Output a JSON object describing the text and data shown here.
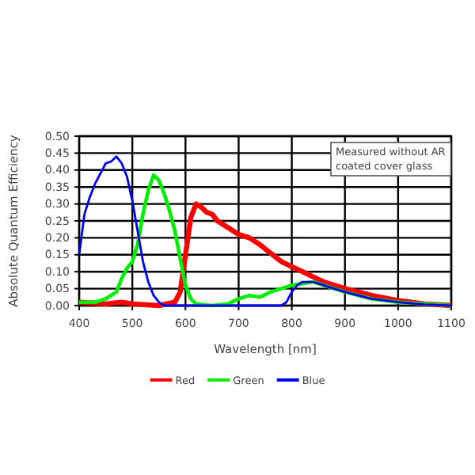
{
  "chart_data": {
    "type": "line",
    "xlabel": "Wavelength [nm]",
    "ylabel": "Absolute Quantum Efficiency",
    "annotations": [
      "Measured without AR coated cover glass"
    ],
    "xlim": [
      400,
      1100
    ],
    "xticks": [
      400,
      500,
      600,
      700,
      800,
      900,
      1000,
      1100
    ],
    "ylim": [
      0,
      0.5
    ],
    "yticks": [
      {
        "value": 0,
        "label": "0.00"
      },
      {
        "value": 0.05,
        "label": "0.05"
      },
      {
        "value": 0.1,
        "label": "0.10"
      },
      {
        "value": 0.15,
        "label": "0.15"
      },
      {
        "value": 0.2,
        "label": "0.20"
      },
      {
        "value": 0.25,
        "label": "0.25"
      },
      {
        "value": 0.3,
        "label": "0.30"
      },
      {
        "value": 0.35,
        "label": "0.35"
      },
      {
        "value": 0.4,
        "label": "0.40"
      },
      {
        "value": 0.45,
        "label": "0.45"
      },
      {
        "value": 0.5,
        "label": "0.50"
      }
    ],
    "grid": true,
    "legend": "bottom",
    "marker": "none",
    "line_style": "solid",
    "series": [
      {
        "name": "Red",
        "color": "#ff0000",
        "x": [
          400,
          450,
          480,
          500,
          550,
          580,
          590,
          600,
          610,
          620,
          630,
          640,
          650,
          660,
          680,
          700,
          720,
          740,
          760,
          780,
          800,
          820,
          840,
          860,
          880,
          900,
          950,
          1000,
          1050,
          1100
        ],
        "values": [
          0.01,
          0.005,
          0.01,
          0.005,
          0,
          0.01,
          0.04,
          0.15,
          0.26,
          0.3,
          0.29,
          0.275,
          0.27,
          0.25,
          0.23,
          0.21,
          0.2,
          0.18,
          0.155,
          0.13,
          0.115,
          0.1,
          0.085,
          0.07,
          0.06,
          0.05,
          0.03,
          0.015,
          0.005,
          0
        ]
      },
      {
        "name": "Green",
        "color": "#00ee00",
        "x": [
          400,
          430,
          450,
          470,
          480,
          490,
          500,
          510,
          520,
          530,
          540,
          550,
          560,
          570,
          580,
          590,
          600,
          610,
          620,
          650,
          680,
          700,
          720,
          740,
          760,
          780,
          800,
          820,
          840,
          860,
          900,
          950,
          1000,
          1100
        ],
        "values": [
          0.01,
          0.01,
          0.02,
          0.04,
          0.08,
          0.11,
          0.13,
          0.18,
          0.27,
          0.34,
          0.385,
          0.37,
          0.33,
          0.28,
          0.22,
          0.14,
          0.06,
          0.02,
          0.005,
          0,
          0.005,
          0.02,
          0.03,
          0.025,
          0.04,
          0.05,
          0.06,
          0.065,
          0.07,
          0.06,
          0.04,
          0.02,
          0.01,
          0
        ]
      },
      {
        "name": "Blue",
        "color": "#0000ee",
        "x": [
          400,
          410,
          420,
          430,
          440,
          450,
          460,
          470,
          480,
          490,
          500,
          510,
          520,
          530,
          540,
          550,
          560,
          580,
          600,
          700,
          780,
          790,
          800,
          810,
          820,
          840,
          860,
          880,
          900,
          950,
          1000,
          1050,
          1100
        ],
        "values": [
          0.15,
          0.27,
          0.32,
          0.36,
          0.39,
          0.42,
          0.425,
          0.44,
          0.42,
          0.38,
          0.31,
          0.22,
          0.13,
          0.07,
          0.03,
          0.01,
          0,
          0,
          0,
          0,
          0,
          0.01,
          0.04,
          0.06,
          0.07,
          0.07,
          0.06,
          0.05,
          0.04,
          0.02,
          0.01,
          0.003,
          0
        ]
      }
    ]
  }
}
